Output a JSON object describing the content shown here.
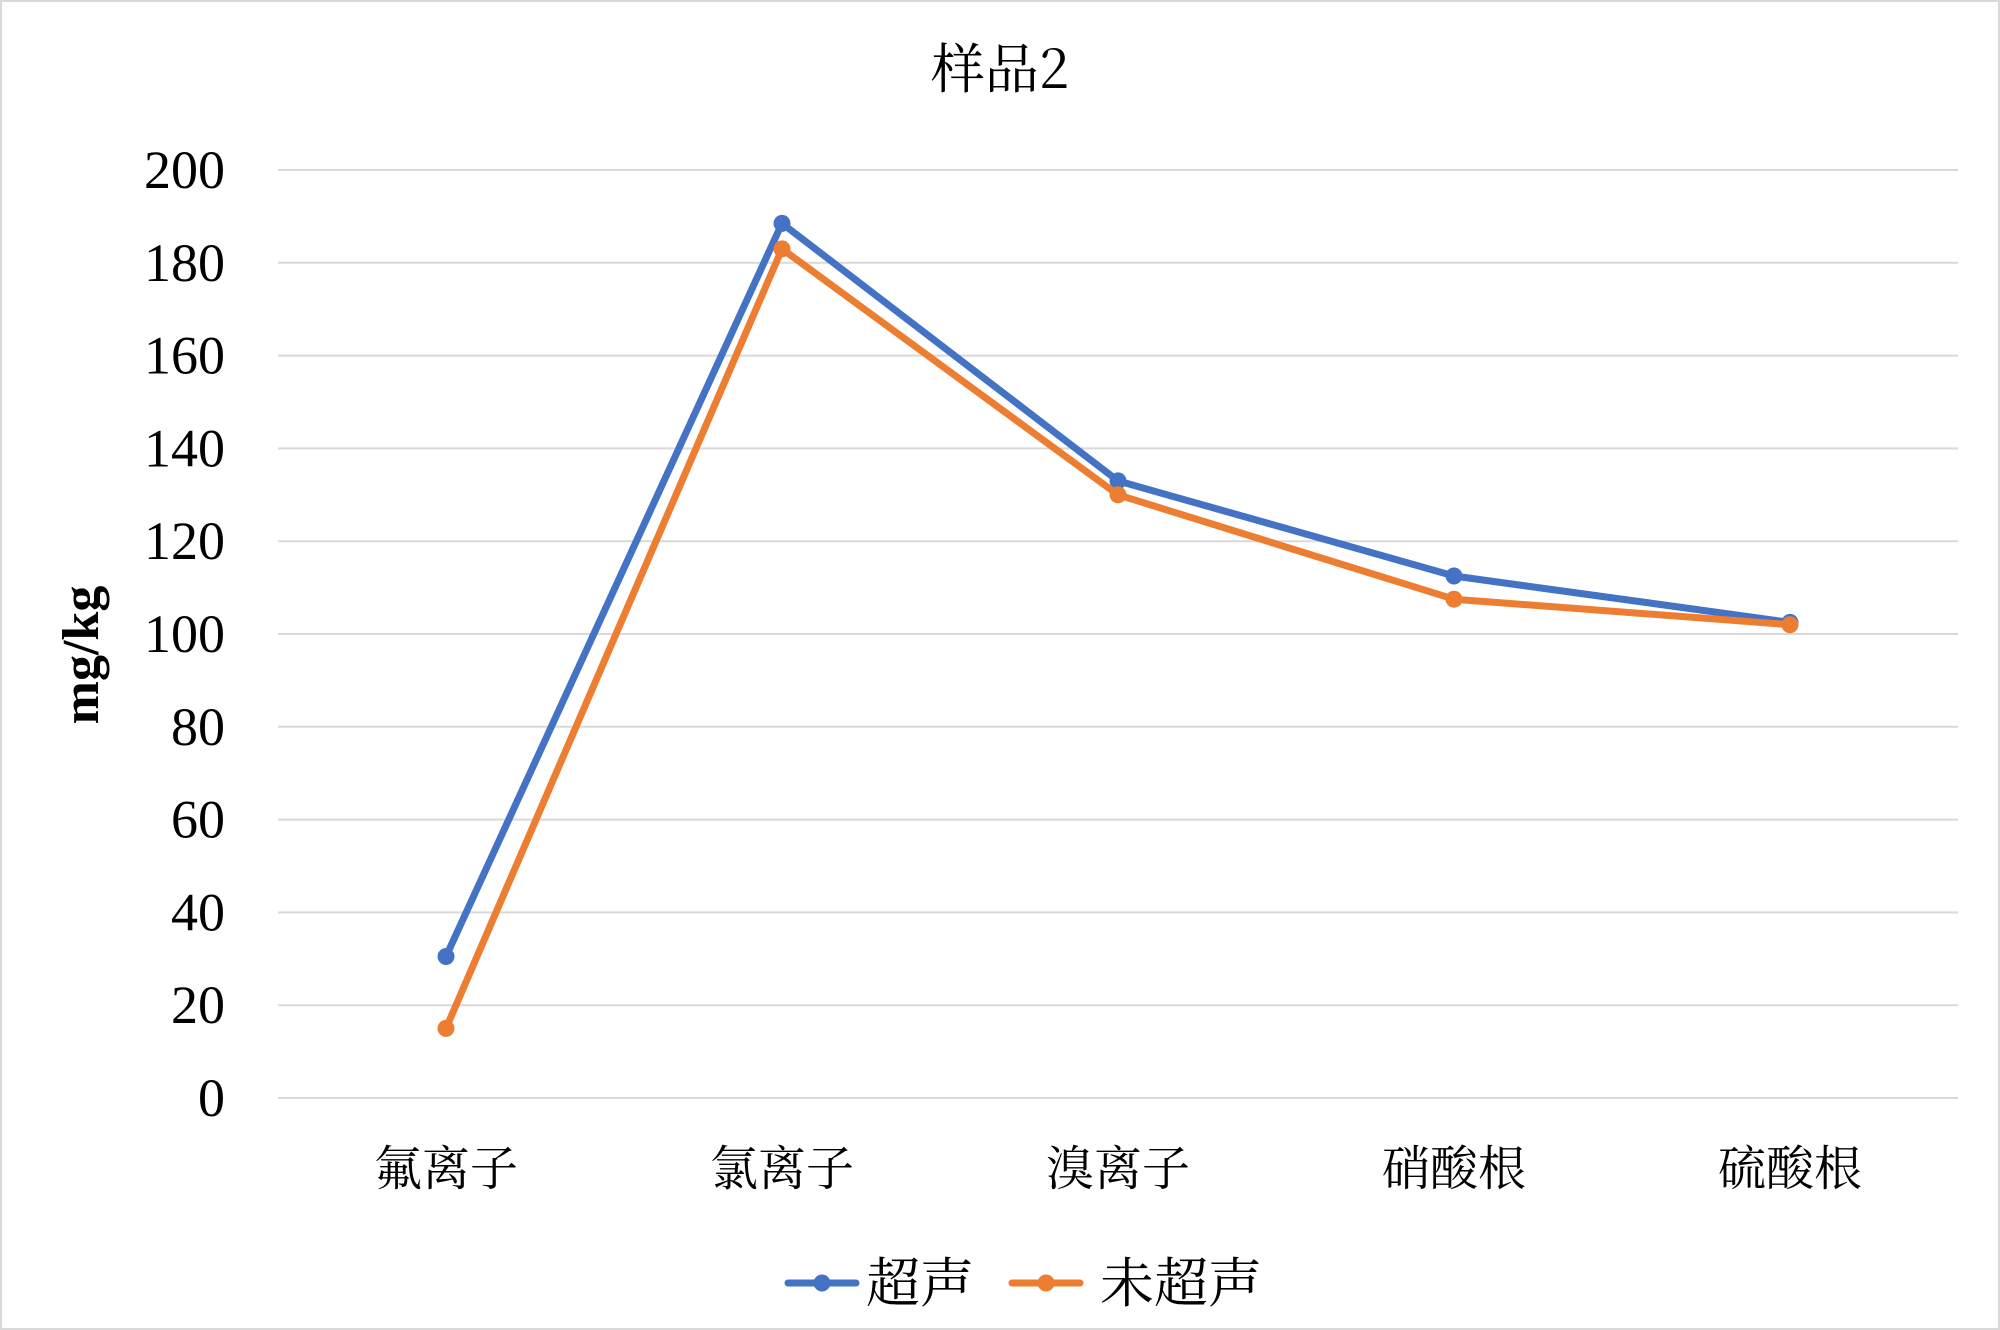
{
  "chart_data": {
    "type": "line",
    "title": "样品2",
    "xlabel": "",
    "ylabel": "mg/kg",
    "categories": [
      "氟离子",
      "氯离子",
      "溴离子",
      "硝酸根",
      "硫酸根"
    ],
    "ylim": [
      0,
      200
    ],
    "yticks": [
      0,
      20,
      40,
      60,
      80,
      100,
      120,
      140,
      160,
      180,
      200
    ],
    "grid": true,
    "legend_position": "bottom",
    "series": [
      {
        "name": "超声",
        "color": "#4472c4",
        "values": [
          30.5,
          188.5,
          133,
          112.5,
          102.5
        ]
      },
      {
        "name": "未超声",
        "color": "#ed7d31",
        "values": [
          15,
          183,
          130,
          107.5,
          102
        ]
      }
    ]
  }
}
